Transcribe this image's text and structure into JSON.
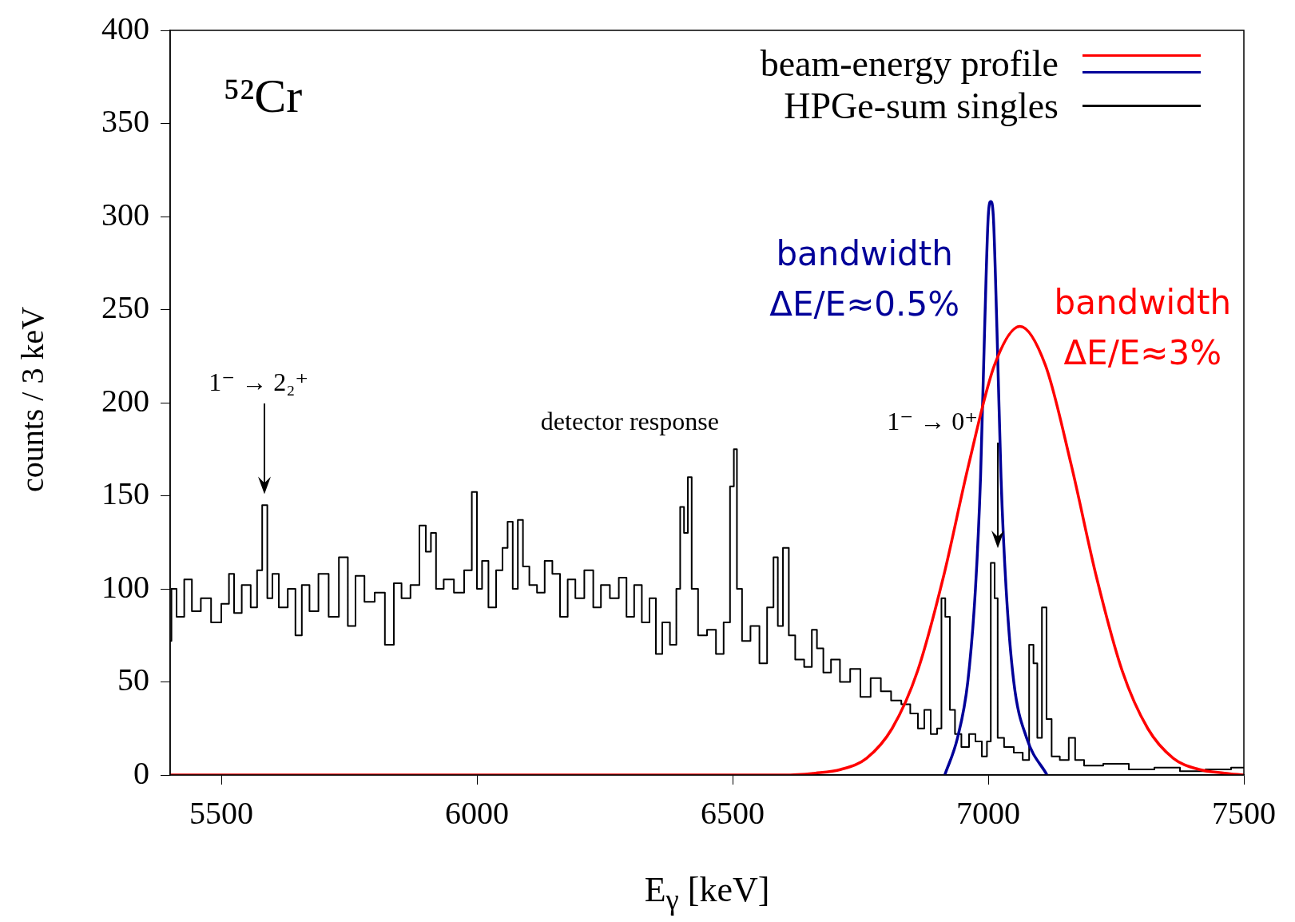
{
  "chart_data": {
    "type": "line",
    "xlabel": "E$_{γ}$ [keV]",
    "ylabel": "counts / 3 keV",
    "xlim": [
      5400,
      7500
    ],
    "xticks": [
      5500,
      6000,
      6500,
      7000,
      7500
    ],
    "ylim": [
      0,
      400
    ],
    "yticks": [
      0,
      50,
      100,
      150,
      200,
      250,
      300,
      350,
      400
    ],
    "grid": false,
    "legend": "top right",
    "marker": "none",
    "line_style": "solid",
    "series": [
      {
        "name": "beam-energy profile",
        "color": "#ff0000",
        "x": [
          5400,
          6600,
          6662,
          6712,
          6762,
          6812,
          6862,
          6912,
          6962,
          7012,
          7062,
          7112,
          7162,
          7212,
          7262,
          7312,
          7362,
          7412,
          7462,
          7500
        ],
        "values": [
          0,
          0,
          1,
          3,
          9,
          25,
          56,
          106,
          167,
          220,
          241,
          220,
          167,
          106,
          56,
          25,
          9,
          3,
          1,
          0
        ]
      },
      {
        "color": "#000099",
        "x": [
          6915,
          6940,
          6960,
          6975,
          6985,
          6993,
          7000,
          7005,
          7010,
          7017,
          7025,
          7035,
          7050,
          7075,
          7115
        ],
        "values": [
          0,
          20,
          50,
          100,
          160,
          240,
          300,
          308,
          300,
          240,
          160,
          100,
          50,
          20,
          0
        ]
      },
      {
        "name": "HPGe-sum singles",
        "color": "#000000",
        "type": "step",
        "x": [
          5400,
          5405,
          5420,
          5435,
          5450,
          5470,
          5490,
          5510,
          5520,
          5530,
          5550,
          5565,
          5575,
          5585,
          5595,
          5605,
          5620,
          5640,
          5650,
          5665,
          5680,
          5700,
          5720,
          5740,
          5755,
          5770,
          5790,
          5810,
          5830,
          5845,
          5860,
          5880,
          5895,
          5905,
          5915,
          5925,
          5945,
          5965,
          5985,
          5995,
          6005,
          6015,
          6030,
          6045,
          6055,
          6065,
          6075,
          6085,
          6095,
          6110,
          6125,
          6140,
          6155,
          6170,
          6185,
          6200,
          6220,
          6235,
          6250,
          6270,
          6285,
          6300,
          6315,
          6330,
          6345,
          6355,
          6370,
          6385,
          6395,
          6400,
          6410,
          6415,
          6425,
          6440,
          6460,
          6475,
          6490,
          6500,
          6505,
          6512,
          6525,
          6545,
          6560,
          6575,
          6585,
          6592,
          6605,
          6615,
          6630,
          6650,
          6660,
          6670,
          6685,
          6700,
          6720,
          6740,
          6760,
          6780,
          6800,
          6820,
          6840,
          6855,
          6870,
          6880,
          6895,
          6905,
          6912,
          6920,
          6930,
          6940,
          6955,
          6970,
          6980,
          6995,
          7000,
          7010,
          7015,
          7022,
          7040,
          7060,
          7075,
          7085,
          7092,
          7100,
          7110,
          7118,
          7130,
          7150,
          7165,
          7175,
          7200,
          7250,
          7300,
          7350,
          7400,
          7450,
          7500
        ],
        "values": [
          72,
          100,
          85,
          105,
          88,
          95,
          82,
          92,
          108,
          87,
          102,
          90,
          110,
          145,
          95,
          108,
          90,
          100,
          75,
          102,
          88,
          108,
          85,
          117,
          80,
          107,
          93,
          98,
          70,
          103,
          95,
          102,
          134,
          120,
          130,
          100,
          105,
          98,
          110,
          152,
          100,
          115,
          90,
          110,
          122,
          136,
          100,
          137,
          112,
          102,
          98,
          115,
          108,
          85,
          105,
          95,
          110,
          90,
          102,
          95,
          106,
          85,
          102,
          82,
          95,
          65,
          82,
          70,
          100,
          144,
          130,
          160,
          100,
          75,
          78,
          65,
          82,
          155,
          175,
          100,
          72,
          80,
          60,
          90,
          117,
          80,
          122,
          75,
          62,
          58,
          78,
          68,
          55,
          62,
          50,
          57,
          42,
          52,
          45,
          40,
          38,
          33,
          25,
          35,
          22,
          25,
          95,
          85,
          35,
          22,
          15,
          22,
          18,
          10,
          18,
          114,
          95,
          20,
          15,
          12,
          8,
          70,
          60,
          20,
          90,
          30,
          10,
          8,
          20,
          8,
          5,
          6,
          3,
          4,
          2,
          3,
          4
        ]
      }
    ],
    "annotations": [
      "⁵²Cr",
      "1⁻ → 2₂⁺",
      "detector response",
      "1⁻ → 0⁺",
      "bandwidth\nΔE/E≈0.5%",
      "bandwidth\nΔE/E≈3%"
    ]
  }
}
